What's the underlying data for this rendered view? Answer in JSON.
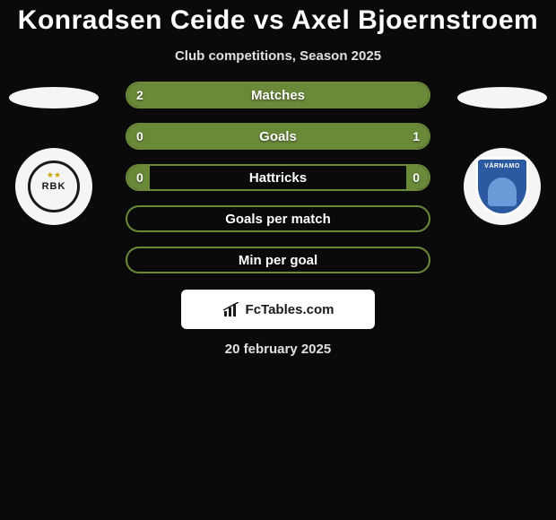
{
  "title": "Konradsen Ceide vs Axel Bjoernstroem",
  "subtitle": "Club competitions, Season 2025",
  "date": "20 february 2025",
  "footer_brand": "FcTables.com",
  "player_left": {
    "club_short": "RBK",
    "badge_bg": "#f5f5f5",
    "badge_ring": "#1a1a1a"
  },
  "player_right": {
    "club_banner": "VÄRNAMO",
    "badge_bg": "#f5f5f5",
    "shield_color": "#2c5aa0"
  },
  "stats": [
    {
      "label": "Matches",
      "left_val": "2",
      "right_val": "",
      "border_color": "#6a8a3a",
      "left_fill_color": "#6a8a3a",
      "right_fill_color": "#6a8a3a",
      "left_fill_pct": 100,
      "right_fill_pct": 0
    },
    {
      "label": "Goals",
      "left_val": "0",
      "right_val": "1",
      "border_color": "#6a8a3a",
      "left_fill_color": "#6a8a3a",
      "right_fill_color": "#6a8a3a",
      "left_fill_pct": 15,
      "right_fill_pct": 100
    },
    {
      "label": "Hattricks",
      "left_val": "0",
      "right_val": "0",
      "border_color": "#6a8a3a",
      "left_fill_color": "#6a8a3a",
      "right_fill_color": "#6a8a3a",
      "left_fill_pct": 15,
      "right_fill_pct": 15
    },
    {
      "label": "Goals per match",
      "left_val": "",
      "right_val": "",
      "border_color": "#6a8a3a",
      "left_fill_color": "#6a8a3a",
      "right_fill_color": "#6a8a3a",
      "left_fill_pct": 0,
      "right_fill_pct": 0
    },
    {
      "label": "Min per goal",
      "left_val": "",
      "right_val": "",
      "border_color": "#6a8a3a",
      "left_fill_color": "#6a8a3a",
      "right_fill_color": "#6a8a3a",
      "left_fill_pct": 0,
      "right_fill_pct": 0
    }
  ],
  "colors": {
    "page_bg": "#0a0a0a",
    "text_main": "#ffffff",
    "text_sub": "#e0e0e0"
  }
}
